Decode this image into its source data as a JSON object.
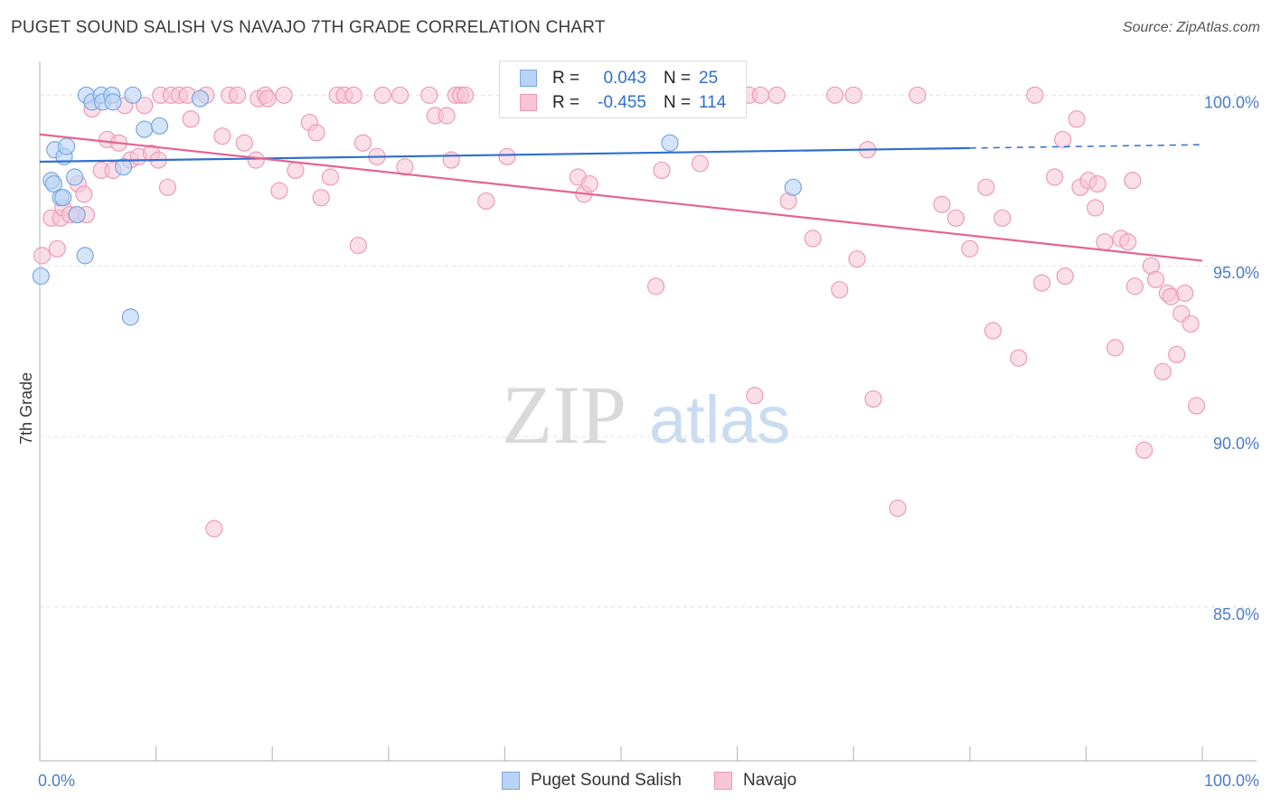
{
  "title": "PUGET SOUND SALISH VS NAVAJO 7TH GRADE CORRELATION CHART",
  "source": "Source: ZipAtlas.com",
  "watermark": {
    "zip": "ZIP",
    "atlas": "atlas"
  },
  "colors": {
    "blue_fill": "#b9d3f5",
    "blue_stroke": "#7aa6e0",
    "blue_line": "#2f6fd0",
    "pink_fill": "#f7c5d6",
    "pink_stroke": "#ee9ab6",
    "pink_line": "#e4658f",
    "tick_text": "#4a7cc9",
    "grid": "#e3e3e3"
  },
  "legend": {
    "rows": [
      {
        "r_label": "R =",
        "r_value": "0.043",
        "n_label": "N =",
        "n_value": "25"
      },
      {
        "r_label": "R =",
        "r_value": "-0.455",
        "n_label": "N =",
        "n_value": "114"
      }
    ]
  },
  "bottom_legend": [
    "Puget Sound Salish",
    "Navajo"
  ],
  "chart_data": {
    "type": "scatter",
    "title": "PUGET SOUND SALISH VS NAVAJO 7TH GRADE CORRELATION CHART",
    "xlabel": "",
    "ylabel": "7th Grade",
    "xlim": [
      0,
      100
    ],
    "ylim": [
      80.5,
      101.2
    ],
    "x_tick_labels": [
      "0.0%",
      "100.0%"
    ],
    "y_ticks": [
      85,
      90,
      95,
      100
    ],
    "y_tick_labels": [
      "85.0%",
      "90.0%",
      "95.0%",
      "100.0%"
    ],
    "grid": "horizontal dashed",
    "series": [
      {
        "name": "Puget Sound Salish",
        "r": 0.043,
        "n": 25,
        "trend": {
          "x": [
            0,
            80,
            100
          ],
          "y": [
            98.05,
            98.45,
            98.55
          ],
          "dashed_from": 80
        },
        "points": [
          [
            0.1,
            94.7
          ],
          [
            1.0,
            97.5
          ],
          [
            1.2,
            97.4
          ],
          [
            1.3,
            98.4
          ],
          [
            1.8,
            97.0
          ],
          [
            2.0,
            97.0
          ],
          [
            2.1,
            98.2
          ],
          [
            2.3,
            98.5
          ],
          [
            3.0,
            97.6
          ],
          [
            3.2,
            96.5
          ],
          [
            3.9,
            95.3
          ],
          [
            4.0,
            100.0
          ],
          [
            4.5,
            99.8
          ],
          [
            5.3,
            100.0
          ],
          [
            5.4,
            99.8
          ],
          [
            6.2,
            100.0
          ],
          [
            6.3,
            99.8
          ],
          [
            7.2,
            97.9
          ],
          [
            7.8,
            93.5
          ],
          [
            8.0,
            100.0
          ],
          [
            9.0,
            99.0
          ],
          [
            10.3,
            99.1
          ],
          [
            13.8,
            99.9
          ],
          [
            54.2,
            98.6
          ],
          [
            64.8,
            97.3
          ]
        ]
      },
      {
        "name": "Navajo",
        "r": -0.455,
        "n": 114,
        "trend": {
          "x": [
            0,
            100
          ],
          "y": [
            98.85,
            95.15
          ]
        },
        "points": [
          [
            0.2,
            95.3
          ],
          [
            1.0,
            96.4
          ],
          [
            1.5,
            95.5
          ],
          [
            1.8,
            96.4
          ],
          [
            2.0,
            96.7
          ],
          [
            2.6,
            96.5
          ],
          [
            3.2,
            96.5
          ],
          [
            3.3,
            97.4
          ],
          [
            3.8,
            97.1
          ],
          [
            4.0,
            96.5
          ],
          [
            4.5,
            99.6
          ],
          [
            5.3,
            97.8
          ],
          [
            5.8,
            98.7
          ],
          [
            6.3,
            97.8
          ],
          [
            6.8,
            98.6
          ],
          [
            7.3,
            99.7
          ],
          [
            7.8,
            98.1
          ],
          [
            8.5,
            98.2
          ],
          [
            9.0,
            99.7
          ],
          [
            9.6,
            98.3
          ],
          [
            10.2,
            98.1
          ],
          [
            10.4,
            100.0
          ],
          [
            11.0,
            97.3
          ],
          [
            11.3,
            100.0
          ],
          [
            12.0,
            100.0
          ],
          [
            12.7,
            100.0
          ],
          [
            13.0,
            99.3
          ],
          [
            14.3,
            100.0
          ],
          [
            15.0,
            87.3
          ],
          [
            15.7,
            98.8
          ],
          [
            16.3,
            100.0
          ],
          [
            17.0,
            100.0
          ],
          [
            17.6,
            98.6
          ],
          [
            18.6,
            98.1
          ],
          [
            18.8,
            99.9
          ],
          [
            19.4,
            100.0
          ],
          [
            19.6,
            99.9
          ],
          [
            20.6,
            97.2
          ],
          [
            21.0,
            100.0
          ],
          [
            22.0,
            97.8
          ],
          [
            23.2,
            99.2
          ],
          [
            23.8,
            98.9
          ],
          [
            24.2,
            97.0
          ],
          [
            25.0,
            97.6
          ],
          [
            25.6,
            100.0
          ],
          [
            26.2,
            100.0
          ],
          [
            27.0,
            100.0
          ],
          [
            27.4,
            95.6
          ],
          [
            27.8,
            98.6
          ],
          [
            29.0,
            98.2
          ],
          [
            29.5,
            100.0
          ],
          [
            31.0,
            100.0
          ],
          [
            31.4,
            97.9
          ],
          [
            33.5,
            100.0
          ],
          [
            34.0,
            99.4
          ],
          [
            35.0,
            99.4
          ],
          [
            35.4,
            98.1
          ],
          [
            35.8,
            100.0
          ],
          [
            36.2,
            100.0
          ],
          [
            36.6,
            100.0
          ],
          [
            38.4,
            96.9
          ],
          [
            40.2,
            98.2
          ],
          [
            45.5,
            100.0
          ],
          [
            46.3,
            97.6
          ],
          [
            46.8,
            97.1
          ],
          [
            47.3,
            97.4
          ],
          [
            53.0,
            94.4
          ],
          [
            53.5,
            97.8
          ],
          [
            54.1,
            99.9
          ],
          [
            56.2,
            100.0
          ],
          [
            56.8,
            98.0
          ],
          [
            61.0,
            100.0
          ],
          [
            61.5,
            91.2
          ],
          [
            62.0,
            100.0
          ],
          [
            63.4,
            100.0
          ],
          [
            64.4,
            96.9
          ],
          [
            66.5,
            95.8
          ],
          [
            68.4,
            100.0
          ],
          [
            68.8,
            94.3
          ],
          [
            70.0,
            100.0
          ],
          [
            70.3,
            95.2
          ],
          [
            71.2,
            98.4
          ],
          [
            71.7,
            91.1
          ],
          [
            73.8,
            87.9
          ],
          [
            75.5,
            100.0
          ],
          [
            77.6,
            96.8
          ],
          [
            78.8,
            96.4
          ],
          [
            80.0,
            95.5
          ],
          [
            81.4,
            97.3
          ],
          [
            82.0,
            93.1
          ],
          [
            82.8,
            96.4
          ],
          [
            84.2,
            92.3
          ],
          [
            85.6,
            100.0
          ],
          [
            86.2,
            94.5
          ],
          [
            87.3,
            97.6
          ],
          [
            88.0,
            98.7
          ],
          [
            88.2,
            94.7
          ],
          [
            89.2,
            99.3
          ],
          [
            89.5,
            97.3
          ],
          [
            90.2,
            97.5
          ],
          [
            90.8,
            96.7
          ],
          [
            91.0,
            97.4
          ],
          [
            91.6,
            95.7
          ],
          [
            92.5,
            92.6
          ],
          [
            93.0,
            95.8
          ],
          [
            93.6,
            95.7
          ],
          [
            94.0,
            97.5
          ],
          [
            94.2,
            94.4
          ],
          [
            95.0,
            89.6
          ],
          [
            95.6,
            95.0
          ],
          [
            96.0,
            94.6
          ],
          [
            96.6,
            91.9
          ],
          [
            97.0,
            94.2
          ],
          [
            97.3,
            94.1
          ],
          [
            97.8,
            92.4
          ],
          [
            98.2,
            93.6
          ],
          [
            98.5,
            94.2
          ],
          [
            99.0,
            93.3
          ],
          [
            99.5,
            90.9
          ]
        ]
      }
    ]
  }
}
